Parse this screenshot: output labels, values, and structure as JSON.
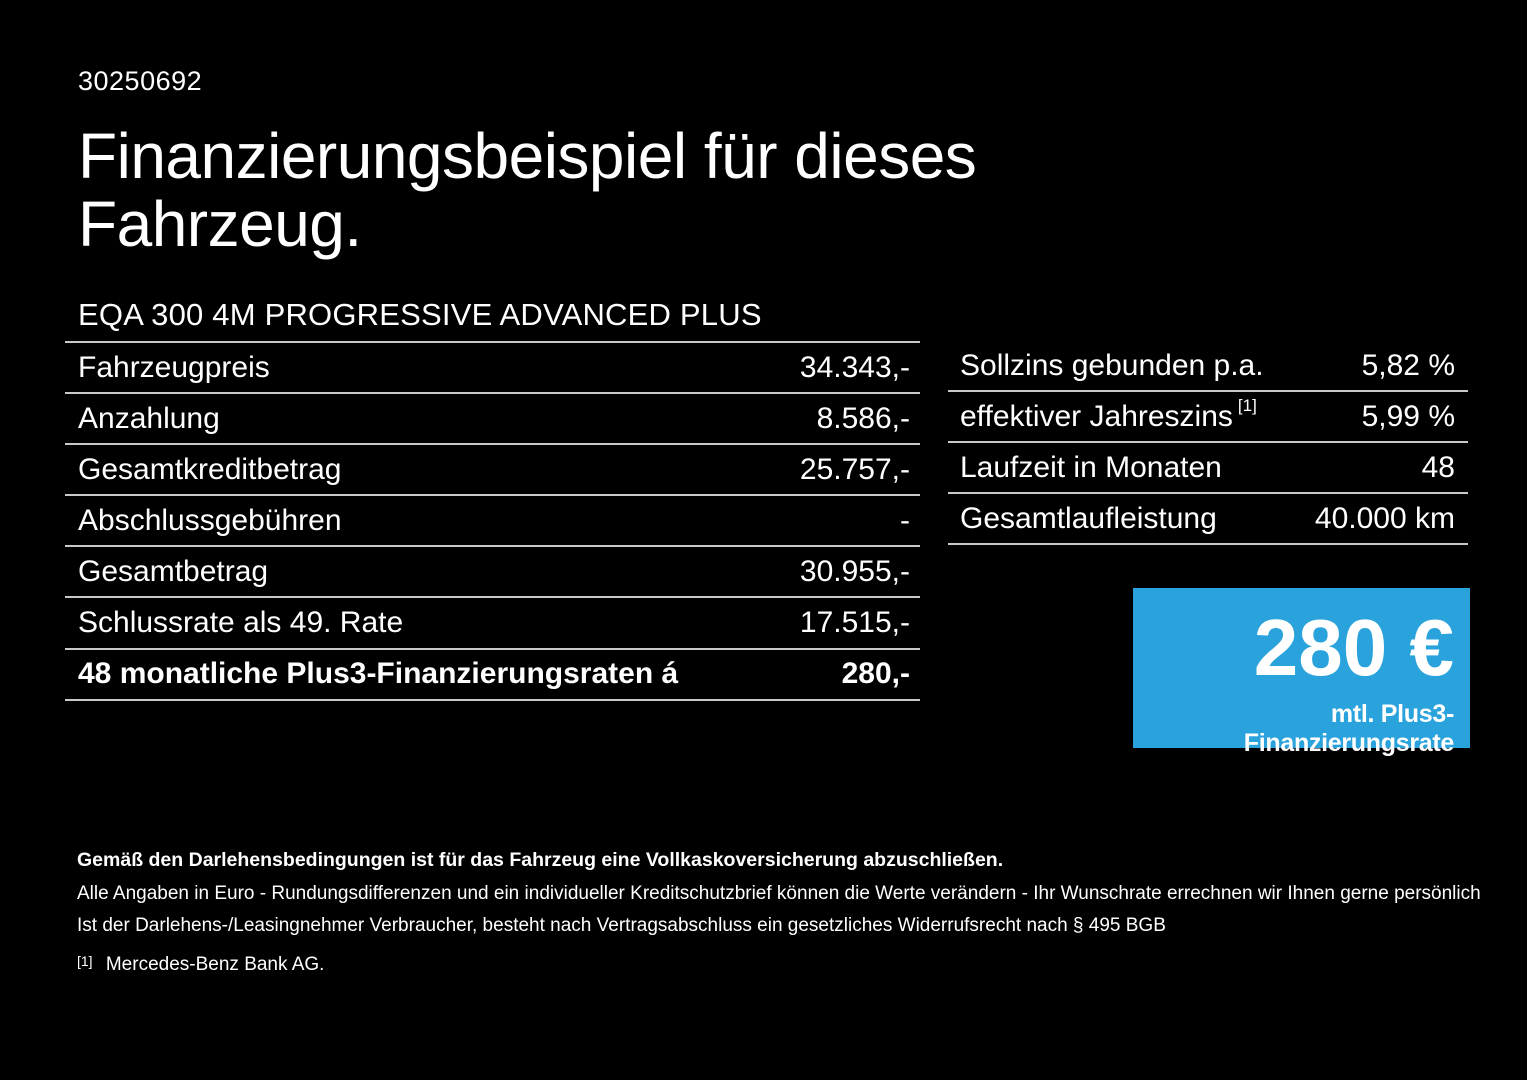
{
  "page": {
    "background": "#000000",
    "text_color": "#ffffff"
  },
  "doc_id": "30250692",
  "title": {
    "line1": "Finanzierungsbeispiel für dieses",
    "line2": "Fahrzeug."
  },
  "vehicle_name": "EQA 300 4M PROGRESSIVE ADVANCED PLUS",
  "finance_table": {
    "rows": [
      {
        "label": "Fahrzeugpreis",
        "value": "34.343,-"
      },
      {
        "label": "Anzahlung",
        "value": "8.586,-"
      },
      {
        "label": "Gesamtkreditbetrag",
        "value": "25.757,-"
      },
      {
        "label": "Abschlussgebühren",
        "value": "-"
      },
      {
        "label": "Gesamtbetrag",
        "value": "30.955,-"
      },
      {
        "label": "Schlussrate als 49. Rate",
        "value": "17.515,-"
      },
      {
        "label": "48 monatliche Plus3-Finanzierungsraten á",
        "value": "280,-"
      }
    ]
  },
  "conditions_table": {
    "rows": [
      {
        "label": "Sollzins gebunden p.a.",
        "value": "5,82 %"
      },
      {
        "label": "effektiver Jahreszins",
        "sup": "[1]",
        "value": "5,99 %"
      },
      {
        "label": "Laufzeit in Monaten",
        "value": "48"
      },
      {
        "label": "Gesamtlaufleistung",
        "value": "40.000 km"
      }
    ]
  },
  "rate_box": {
    "amount": "280 €",
    "caption": "mtl. Plus3-Finanzierungsrate",
    "background": "#2aa3dc"
  },
  "footer": {
    "bold_note": "Gemäß den Darlehensbedingungen ist für das Fahrzeug eine Vollkaskoversicherung abzuschließen.",
    "note1": "Alle Angaben in Euro - Rundungsdifferenzen und ein individueller Kreditschutzbrief können die Werte verändern - Ihr Wunschrate errechnen wir Ihnen gerne persönlich",
    "note2": "Ist der Darlehens-/Leasingnehmer Verbraucher, besteht nach Vertragsabschluss ein gesetzliches Widerrufsrecht nach § 495 BGB",
    "footnote_marker": "[1]",
    "footnote_text": "Mercedes-Benz Bank AG."
  },
  "colors": {
    "accent_blue": "#2aa3dc",
    "divider": "#c8c8c8",
    "background": "#000000"
  }
}
